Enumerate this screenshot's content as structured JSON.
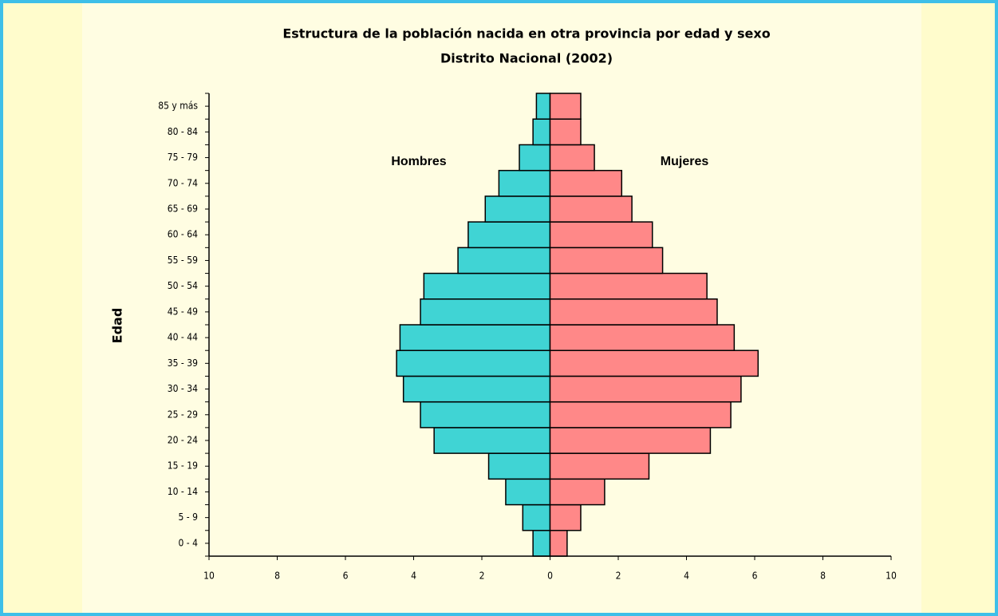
{
  "chart_data": {
    "type": "pyramid",
    "title": "Estructura de la población nacida en otra provincia por edad y sexo",
    "subtitle": "Distrito Nacional (2002)",
    "y_label": "Edad",
    "categories": [
      "0 - 4",
      "5 - 9",
      "10 - 14",
      "15 - 19",
      "20 - 24",
      "25 - 29",
      "30 - 34",
      "35 - 39",
      "40 - 44",
      "45 - 49",
      "50 - 54",
      "55 - 59",
      "60 - 64",
      "65 - 69",
      "70 - 74",
      "75 - 79",
      "80 - 84",
      "85 y más"
    ],
    "series": [
      {
        "name": "Hombres",
        "color": "#40d4d4",
        "values": [
          -0.5,
          -0.8,
          -1.3,
          -1.8,
          -3.4,
          -3.8,
          -4.3,
          -4.5,
          -4.4,
          -3.8,
          -3.7,
          -2.7,
          -2.4,
          -1.9,
          -1.5,
          -0.9,
          -0.5,
          -0.4
        ]
      },
      {
        "name": "Mujeres",
        "color": "#ff8888",
        "values": [
          0.5,
          0.9,
          1.6,
          2.9,
          4.7,
          5.3,
          5.6,
          6.1,
          5.4,
          4.9,
          4.6,
          3.3,
          3.0,
          2.4,
          2.1,
          1.3,
          0.9,
          0.9
        ]
      }
    ],
    "xlim": [
      -10,
      10
    ],
    "xticks": [
      {
        "value": -10,
        "label": "10"
      },
      {
        "value": -8,
        "label": "8"
      },
      {
        "value": -6,
        "label": "6"
      },
      {
        "value": -4,
        "label": "4"
      },
      {
        "value": -2,
        "label": "2"
      },
      0,
      2,
      4,
      6,
      8,
      10
    ]
  }
}
